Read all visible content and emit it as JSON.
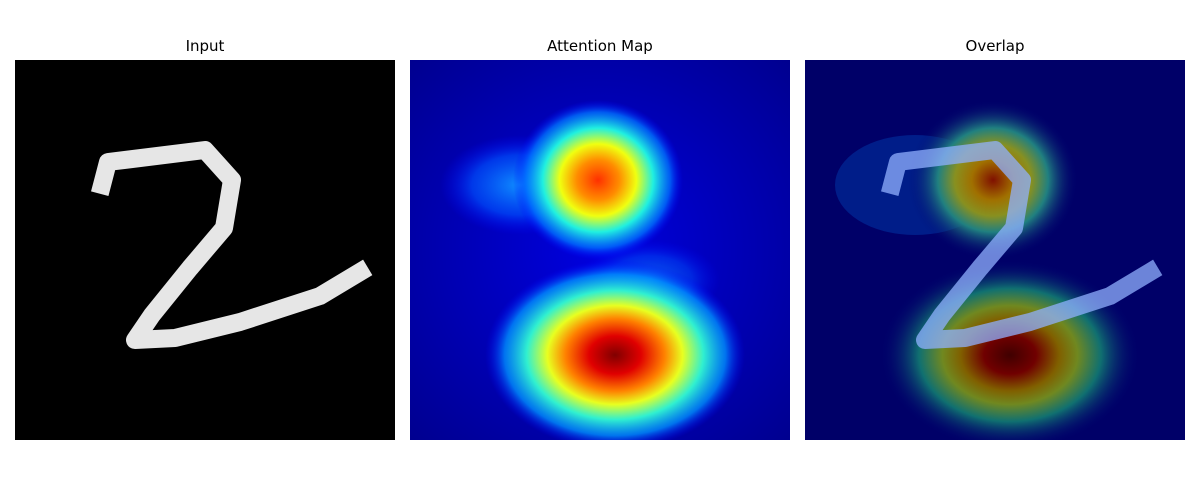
{
  "panels": [
    {
      "title": "Input"
    },
    {
      "title": "Attention Map"
    },
    {
      "title": "Overlap"
    }
  ]
}
